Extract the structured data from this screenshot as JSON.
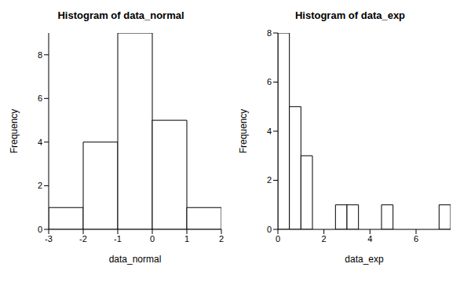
{
  "chart_data": [
    {
      "type": "histogram",
      "title": "Histogram of data_normal",
      "x_label": "data_normal",
      "y_label": "Frequency",
      "bins": [
        -3,
        -2,
        -1,
        0,
        1,
        2
      ],
      "counts": [
        1,
        4,
        9,
        5,
        1
      ],
      "color": "#ffffff",
      "xlim": [
        -3,
        2
      ],
      "xticks": [
        -3,
        -2,
        -1,
        0,
        1,
        2
      ],
      "ylim": [
        0,
        9
      ],
      "yticks": [
        0,
        2,
        4,
        6,
        8
      ],
      "grid": false
    },
    {
      "type": "histogram",
      "title": "Histogram of data_exp",
      "x_label": "data_exp",
      "y_label": "Frequency",
      "bins": [
        0,
        0.5,
        1,
        1.5,
        2,
        2.5,
        3,
        3.5,
        4,
        4.5,
        5,
        5.5,
        6,
        6.5,
        7,
        7.5
      ],
      "counts": [
        8,
        5,
        3,
        0,
        0,
        1,
        1,
        0,
        0,
        1,
        0,
        0,
        0,
        0,
        1
      ],
      "color": "#ffffff",
      "xlim": [
        0,
        7.5
      ],
      "xticks": [
        0,
        2,
        4,
        6
      ],
      "ylim": [
        0,
        8
      ],
      "yticks": [
        0,
        2,
        4,
        6,
        8
      ],
      "grid": false
    }
  ]
}
